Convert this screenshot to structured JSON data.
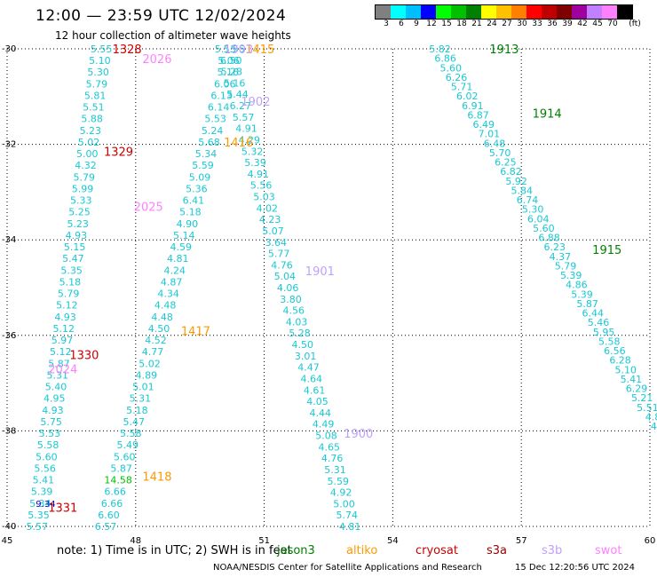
{
  "header": {
    "title": "12:00 — 23:59 UTC 12/02/2024",
    "subtitle": "12 hour collection of altimeter wave heights"
  },
  "legend": {
    "unit": "(ft)",
    "colors": [
      "#808080",
      "#00ffff",
      "#00bfff",
      "#0000ff",
      "#00ff00",
      "#00c000",
      "#008000",
      "#ffff00",
      "#ffc000",
      "#ff8000",
      "#ff0000",
      "#c00000",
      "#800000",
      "#a000a0",
      "#c080ff",
      "#ff80ff",
      "#000000"
    ],
    "ticks": [
      "3",
      "6",
      "9",
      "12",
      "15",
      "18",
      "21",
      "24",
      "27",
      "30",
      "33",
      "36",
      "39",
      "42",
      "45",
      "70"
    ]
  },
  "axes": {
    "x_ticks": [
      "45",
      "48",
      "51",
      "54",
      "57",
      "60"
    ],
    "y_ticks": [
      "-30",
      "-32",
      "-34",
      "-36",
      "-38",
      "-40"
    ],
    "x_range": [
      45,
      60
    ],
    "y_range": [
      -40,
      -30
    ],
    "grid": true
  },
  "tracks": [
    {
      "id": "track-s3a",
      "time_labels": [
        {
          "text": "1328",
          "lat": -30.0,
          "lon": 47.8,
          "color": "#cc0000"
        },
        {
          "text": "1329",
          "lat": -32.15,
          "lon": 47.6,
          "color": "#cc0000"
        },
        {
          "text": "1330",
          "lat": -36.4,
          "lon": 46.8,
          "color": "#cc0000"
        },
        {
          "text": "1331",
          "lat": -39.6,
          "lon": 46.3,
          "color": "#cc0000"
        }
      ]
    },
    {
      "id": "track-swot",
      "time_labels": [
        {
          "text": "2026",
          "lat": -30.2,
          "lon": 48.5,
          "color": "#ff80ff"
        },
        {
          "text": "2025",
          "lat": -33.3,
          "lon": 48.3,
          "color": "#ff80ff"
        },
        {
          "text": "2024",
          "lat": -36.7,
          "lon": 46.3,
          "color": "#ff80ff"
        }
      ]
    },
    {
      "id": "track-altika",
      "time_labels": [
        {
          "text": "1415",
          "lat": -30.0,
          "lon": 50.9,
          "color": "#ff9900"
        },
        {
          "text": "1416",
          "lat": -31.95,
          "lon": 50.4,
          "color": "#ff9900"
        },
        {
          "text": "1417",
          "lat": -35.9,
          "lon": 49.4,
          "color": "#ff9900"
        },
        {
          "text": "1418",
          "lat": -38.95,
          "lon": 48.5,
          "color": "#ff9900"
        }
      ]
    },
    {
      "id": "track-s3b",
      "time_labels": [
        {
          "text": "1903",
          "lat": -30.0,
          "lon": 50.4,
          "color": "#c0a0ff"
        },
        {
          "text": "1902",
          "lat": -31.1,
          "lon": 50.8,
          "color": "#c0a0ff"
        },
        {
          "text": "1901",
          "lat": -34.65,
          "lon": 52.3,
          "color": "#c0a0ff"
        },
        {
          "text": "1900",
          "lat": -38.05,
          "lon": 53.2,
          "color": "#c0a0ff"
        }
      ]
    },
    {
      "id": "track-jason",
      "time_labels": [
        {
          "text": "1913",
          "lat": -30.0,
          "lon": 56.6,
          "color": "#008000"
        },
        {
          "text": "1914",
          "lat": -31.35,
          "lon": 57.6,
          "color": "#008000"
        },
        {
          "text": "1915",
          "lat": -34.2,
          "lon": 59.0,
          "color": "#008000"
        }
      ]
    }
  ],
  "observations": {
    "track_a": [
      "5.55",
      "5.10",
      "5.30",
      "5.79",
      "5.81",
      "5.51",
      "5.88",
      "5.23",
      "5.02",
      "5.00",
      "4.32",
      "5.79",
      "5.99",
      "5.33",
      "5.25",
      "5.23",
      "4.93",
      "5.15",
      "5.47",
      "5.35",
      "5.18",
      "5.79",
      "5.12",
      "4.93",
      "5.12",
      "5.97",
      "5.12",
      "5.87",
      "5.31",
      "5.40",
      "4.95",
      "4.93",
      "5.75",
      "5.53",
      "5.58",
      "5.60",
      "5.56",
      "5.41",
      "5.39",
      "5.34",
      "5.35",
      "5.57"
    ],
    "track_b": [
      "5.55",
      "6.50",
      "5.16",
      "6.06",
      "6.13",
      "6.14",
      "5.53",
      "5.24",
      "5.68",
      "5.34",
      "5.59",
      "5.09",
      "5.36",
      "6.41",
      "5.18",
      "4.90",
      "5.14",
      "4.59",
      "4.81",
      "4.24",
      "4.87",
      "4.34",
      "4.48",
      "4.48",
      "4.50",
      "4.52",
      "4.77",
      "5.02",
      "4.89",
      "5.01",
      "5.31",
      "5.18",
      "5.47",
      "5.58",
      "5.49",
      "5.60",
      "5.87",
      "14.58",
      "6.66",
      "6.66",
      "6.60",
      "6.57"
    ],
    "track_c": [
      "5.15",
      "5.06",
      "5.28",
      "5.16",
      "5.44",
      "6.27",
      "5.57",
      "4.91",
      "4.29",
      "5.32",
      "5.39",
      "4.91",
      "5.56",
      "5.03",
      "4.02",
      "4.23",
      "5.07",
      "3.64",
      "5.77",
      "4.76",
      "5.04",
      "4.06",
      "3.80",
      "4.56",
      "4.03",
      "5.28",
      "4.50",
      "3.01",
      "4.47",
      "4.64",
      "4.61",
      "4.05",
      "4.44",
      "4.49",
      "5.08",
      "4.65",
      "4.76",
      "5.31",
      "5.59",
      "4.92",
      "5.00",
      "5.74",
      "4.81"
    ],
    "track_d": [
      "5.82",
      "6.86",
      "5.60",
      "6.26",
      "5.71",
      "6.02",
      "6.91",
      "6.87",
      "6.49",
      "7.01",
      "6.48",
      "5.70",
      "6.25",
      "6.82",
      "5.92",
      "5.84",
      "6.74",
      "5.30",
      "6.04",
      "5.60",
      "6.88",
      "6.23",
      "4.37",
      "5.79",
      "5.39",
      "4.86",
      "5.39",
      "5.87",
      "6.44",
      "5.46",
      "5.95",
      "5.58",
      "6.56",
      "6.28",
      "5.10",
      "5.41",
      "6.29",
      "5.21",
      "5.51",
      "4.8",
      "4.8"
    ],
    "highlight": [
      "9.34"
    ]
  },
  "footer": {
    "note": "note:  1) Time is in UTC; 2) SWH is in feet",
    "satellites": [
      {
        "name": "jason3",
        "color": "#008000"
      },
      {
        "name": "altiko",
        "color": "#ff9900"
      },
      {
        "name": "cryosat",
        "color": "#cc0000"
      },
      {
        "name": "s3a",
        "color": "#990000"
      },
      {
        "name": "s3b",
        "color": "#c0a0ff"
      },
      {
        "name": "swot",
        "color": "#ff80ff"
      }
    ],
    "credit": "NOAA/NESDIS Center for Satellite Applications and Research",
    "timestamp": "15 Dec 12:20:56 UTC 2024"
  }
}
